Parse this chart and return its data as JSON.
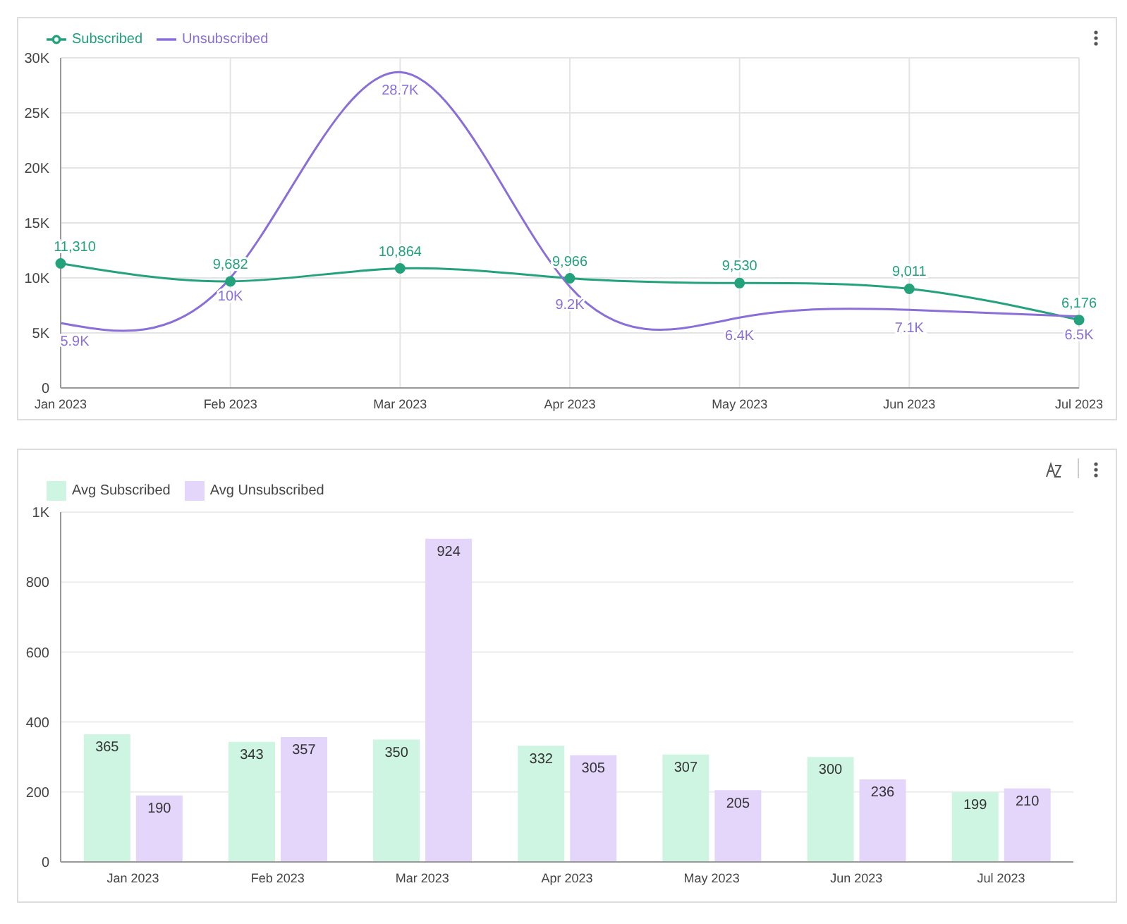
{
  "chart_data": [
    {
      "type": "line",
      "categories": [
        "Jan 2023",
        "Feb 2023",
        "Mar 2023",
        "Apr 2023",
        "May 2023",
        "Jun 2023",
        "Jul 2023"
      ],
      "series": [
        {
          "name": "Subscribed",
          "color": "#23a27c",
          "marker": "circle",
          "values": [
            11310,
            9682,
            10864,
            9966,
            9530,
            9011,
            6176
          ],
          "value_labels": [
            "11,310",
            "9,682",
            "10,864",
            "9,966",
            "9,530",
            "9,011",
            "6,176"
          ]
        },
        {
          "name": "Unsubscribed",
          "color": "#8a6fd8",
          "marker": "none",
          "values": [
            5900,
            10000,
            28700,
            9200,
            6400,
            7100,
            6500
          ],
          "value_labels": [
            "5.9K",
            "10K",
            "28.7K",
            "9.2K",
            "6.4K",
            "7.1K",
            "6.5K"
          ]
        }
      ],
      "ylim": [
        0,
        30000
      ],
      "yticks": [
        0,
        {
          "value": 5000,
          "label": "5K"
        },
        {
          "value": 10000,
          "label": "10K"
        },
        {
          "value": 15000,
          "label": "15K"
        },
        {
          "value": 20000,
          "label": "20K"
        },
        {
          "value": 25000,
          "label": "25K"
        },
        {
          "value": 30000,
          "label": "30K"
        }
      ],
      "grid": true,
      "legend": "top left",
      "line_style": "solid"
    },
    {
      "type": "bar",
      "categories": [
        "Jan 2023",
        "Feb 2023",
        "Mar 2023",
        "Apr 2023",
        "May 2023",
        "Jun 2023",
        "Jul 2023"
      ],
      "series": [
        {
          "name": "Avg Subscribed",
          "color": "#cdf5e2",
          "values": [
            365,
            343,
            350,
            332,
            307,
            300,
            199
          ]
        },
        {
          "name": "Avg Unsubscribed",
          "color": "#e4d6fb",
          "values": [
            190,
            357,
            924,
            305,
            205,
            236,
            210
          ]
        }
      ],
      "ylim": [
        0,
        1000
      ],
      "yticks": [
        0,
        200,
        400,
        600,
        800,
        {
          "value": 1000,
          "label": "1K"
        }
      ],
      "grid": "y",
      "legend": "top left",
      "data_labels": true
    }
  ]
}
